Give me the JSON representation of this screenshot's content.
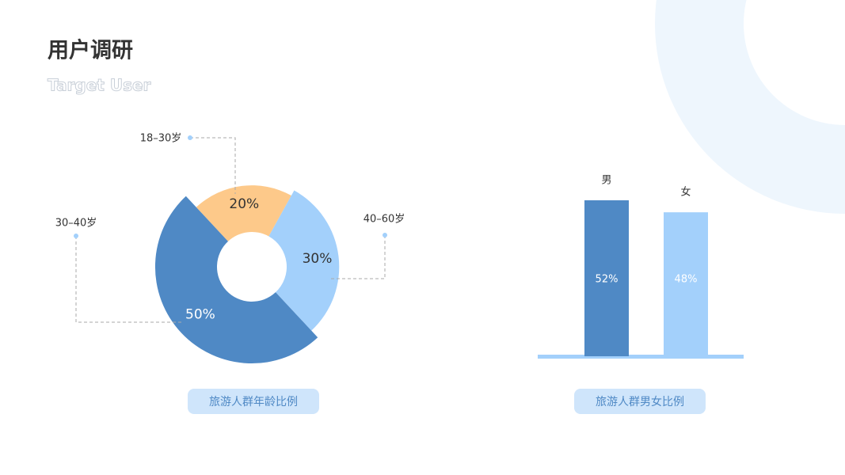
{
  "header": {
    "title": "用户调研",
    "subtitle": "Target User"
  },
  "chart_data": [
    {
      "type": "pie",
      "caption": "旅游人群年龄比例",
      "categories": [
        "18–30岁",
        "40–60岁",
        "30–40岁"
      ],
      "values": [
        20,
        30,
        50
      ],
      "value_labels": [
        "20%",
        "30%",
        "50%"
      ],
      "colors": [
        "#fdc98a",
        "#a3d0fb",
        "#4f89c5"
      ]
    },
    {
      "type": "bar",
      "caption": "旅游人群男女比例",
      "categories": [
        "男",
        "女"
      ],
      "values": [
        52,
        48
      ],
      "value_labels": [
        "52%",
        "48%"
      ],
      "colors": [
        "#4f89c5",
        "#a3d0fb"
      ]
    }
  ]
}
